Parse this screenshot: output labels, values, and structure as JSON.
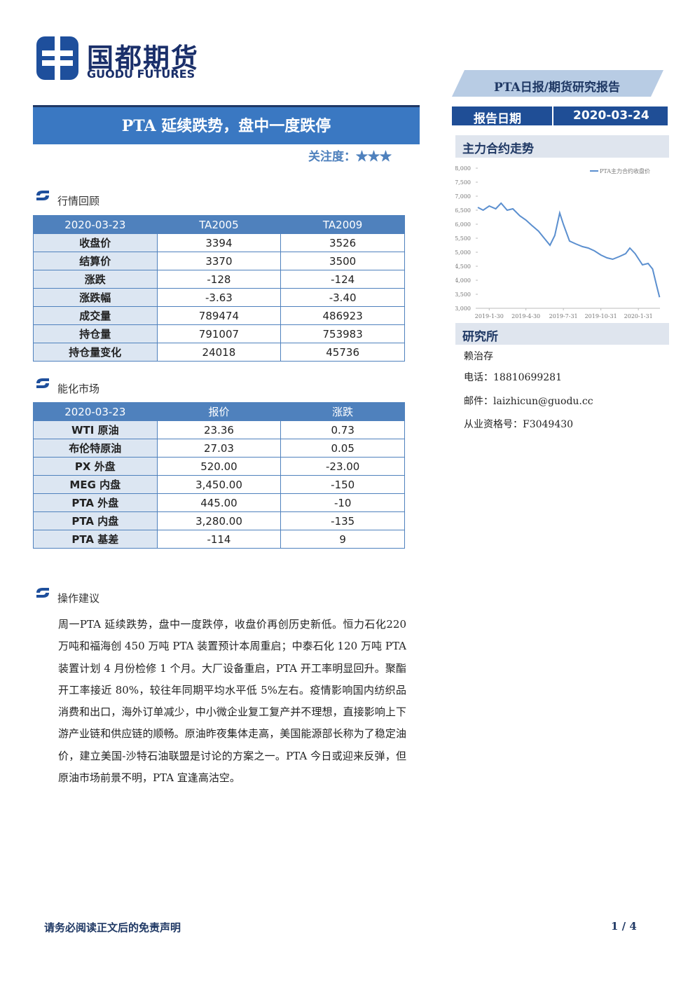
{
  "logo": {
    "cn": "国都期货",
    "en": "GUODU FUTURES"
  },
  "header": {
    "badge": "PTA日报/期货研究报告",
    "title": "PTA 延续跌势，盘中一度跌停",
    "attention_label": "关注度：",
    "attention_stars": "★★★",
    "date_label": "报告日期",
    "date": "2020-03-24"
  },
  "chart_heading": "主力合约走势",
  "chart_data": {
    "type": "line",
    "xlim": [
      "2019-1-2",
      "2020-3-24"
    ],
    "xticks": [
      "2019-1-30",
      "2019-4-30",
      "2019-7-31",
      "2019-10-31",
      "2020-1-31"
    ],
    "ylim": [
      3000,
      8000
    ],
    "yticks": [
      {
        "value": 3000,
        "label": "3,000"
      },
      {
        "value": 3500,
        "label": "3,500"
      },
      {
        "value": 4000,
        "label": "4,000"
      },
      {
        "value": 4500,
        "label": "4,500"
      },
      {
        "value": 5000,
        "label": "5,000"
      },
      {
        "value": 5500,
        "label": "5,500"
      },
      {
        "value": 6000,
        "label": "6,000"
      },
      {
        "value": 6500,
        "label": "6,500"
      },
      {
        "value": 7000,
        "label": "7,000"
      },
      {
        "value": 7500,
        "label": "7,500"
      },
      {
        "value": 8000,
        "label": "8,000"
      }
    ],
    "legend": "top-right",
    "x": [
      "2019-1-2",
      "2019-1-15",
      "2019-1-30",
      "2019-2-15",
      "2019-2-28",
      "2019-3-15",
      "2019-3-29",
      "2019-4-15",
      "2019-4-30",
      "2019-5-15",
      "2019-5-31",
      "2019-6-14",
      "2019-6-28",
      "2019-7-10",
      "2019-7-22",
      "2019-7-31",
      "2019-8-15",
      "2019-8-30",
      "2019-9-16",
      "2019-9-30",
      "2019-10-15",
      "2019-10-31",
      "2019-11-15",
      "2019-11-29",
      "2019-12-16",
      "2019-12-31",
      "2020-1-10",
      "2020-1-23",
      "2020-2-10",
      "2020-2-24",
      "2020-3-6",
      "2020-3-16",
      "2020-3-23"
    ],
    "series": [
      {
        "name": "PTA主力合约收盘价",
        "color": "#5b8fcf",
        "values": [
          6600,
          6500,
          6650,
          6550,
          6750,
          6500,
          6550,
          6300,
          6150,
          5950,
          5750,
          5500,
          5250,
          5600,
          6400,
          6000,
          5400,
          5300,
          5200,
          5150,
          5050,
          4900,
          4800,
          4750,
          4850,
          4950,
          5150,
          4950,
          4550,
          4600,
          4400,
          3800,
          3394
        ]
      }
    ]
  },
  "sections": [
    "行情回顾",
    "能化市场",
    "操作建议"
  ],
  "table1": {
    "header": [
      "2020-03-23",
      "TA2005",
      "TA2009"
    ],
    "rows": [
      [
        "收盘价",
        "3394",
        "3526"
      ],
      [
        "结算价",
        "3370",
        "3500"
      ],
      [
        "涨跌",
        "-128",
        "-124"
      ],
      [
        "涨跌幅",
        "-3.63",
        "-3.40"
      ],
      [
        "成交量",
        "789474",
        "486923"
      ],
      [
        "持仓量",
        "791007",
        "753983"
      ],
      [
        "持仓量变化",
        "24018",
        "45736"
      ]
    ]
  },
  "table2": {
    "header": [
      "2020-03-23",
      "报价",
      "涨跌"
    ],
    "rows": [
      [
        "WTI 原油",
        "23.36",
        "0.73"
      ],
      [
        "布伦特原油",
        "27.03",
        "0.05"
      ],
      [
        "PX 外盘",
        "520.00",
        "-23.00"
      ],
      [
        "MEG 内盘",
        "3,450.00",
        "-150"
      ],
      [
        "PTA 外盘",
        "445.00",
        "-10"
      ],
      [
        "PTA 内盘",
        "3,280.00",
        "-135"
      ],
      [
        "PTA 基差",
        "-114",
        "9"
      ]
    ]
  },
  "advice": "周一PTA 延续跌势，盘中一度跌停，收盘价再创历史新低。恒力石化220 万吨和福海创 450 万吨 PTA 装置预计本周重启；中泰石化 120 万吨 PTA 装置计划 4 月份检修 1 个月。大厂设备重启，PTA 开工率明显回升。聚酯开工率接近 80%，较往年同期平均水平低 5%左右。疫情影响国内纺织品消费和出口，海外订单减少，中小微企业复工复产并不理想，直接影响上下游产业链和供应链的顺畅。原油昨夜集体走高，美国能源部长称为了稳定油价，建立美国-沙特石油联盟是讨论的方案之一。PTA 今日或迎来反弹，但原油市场前景不明，PTA 宜逢高沽空。",
  "research": {
    "heading": "研究所",
    "name": "赖治存",
    "phone": "电话：18810699281",
    "email": "邮件：laizhicun@guodu.cc",
    "license": "从业资格号：F3049430"
  },
  "footer": {
    "disclaimer": "请务必阅读正文后的免责声明",
    "page": "1 / 4"
  }
}
